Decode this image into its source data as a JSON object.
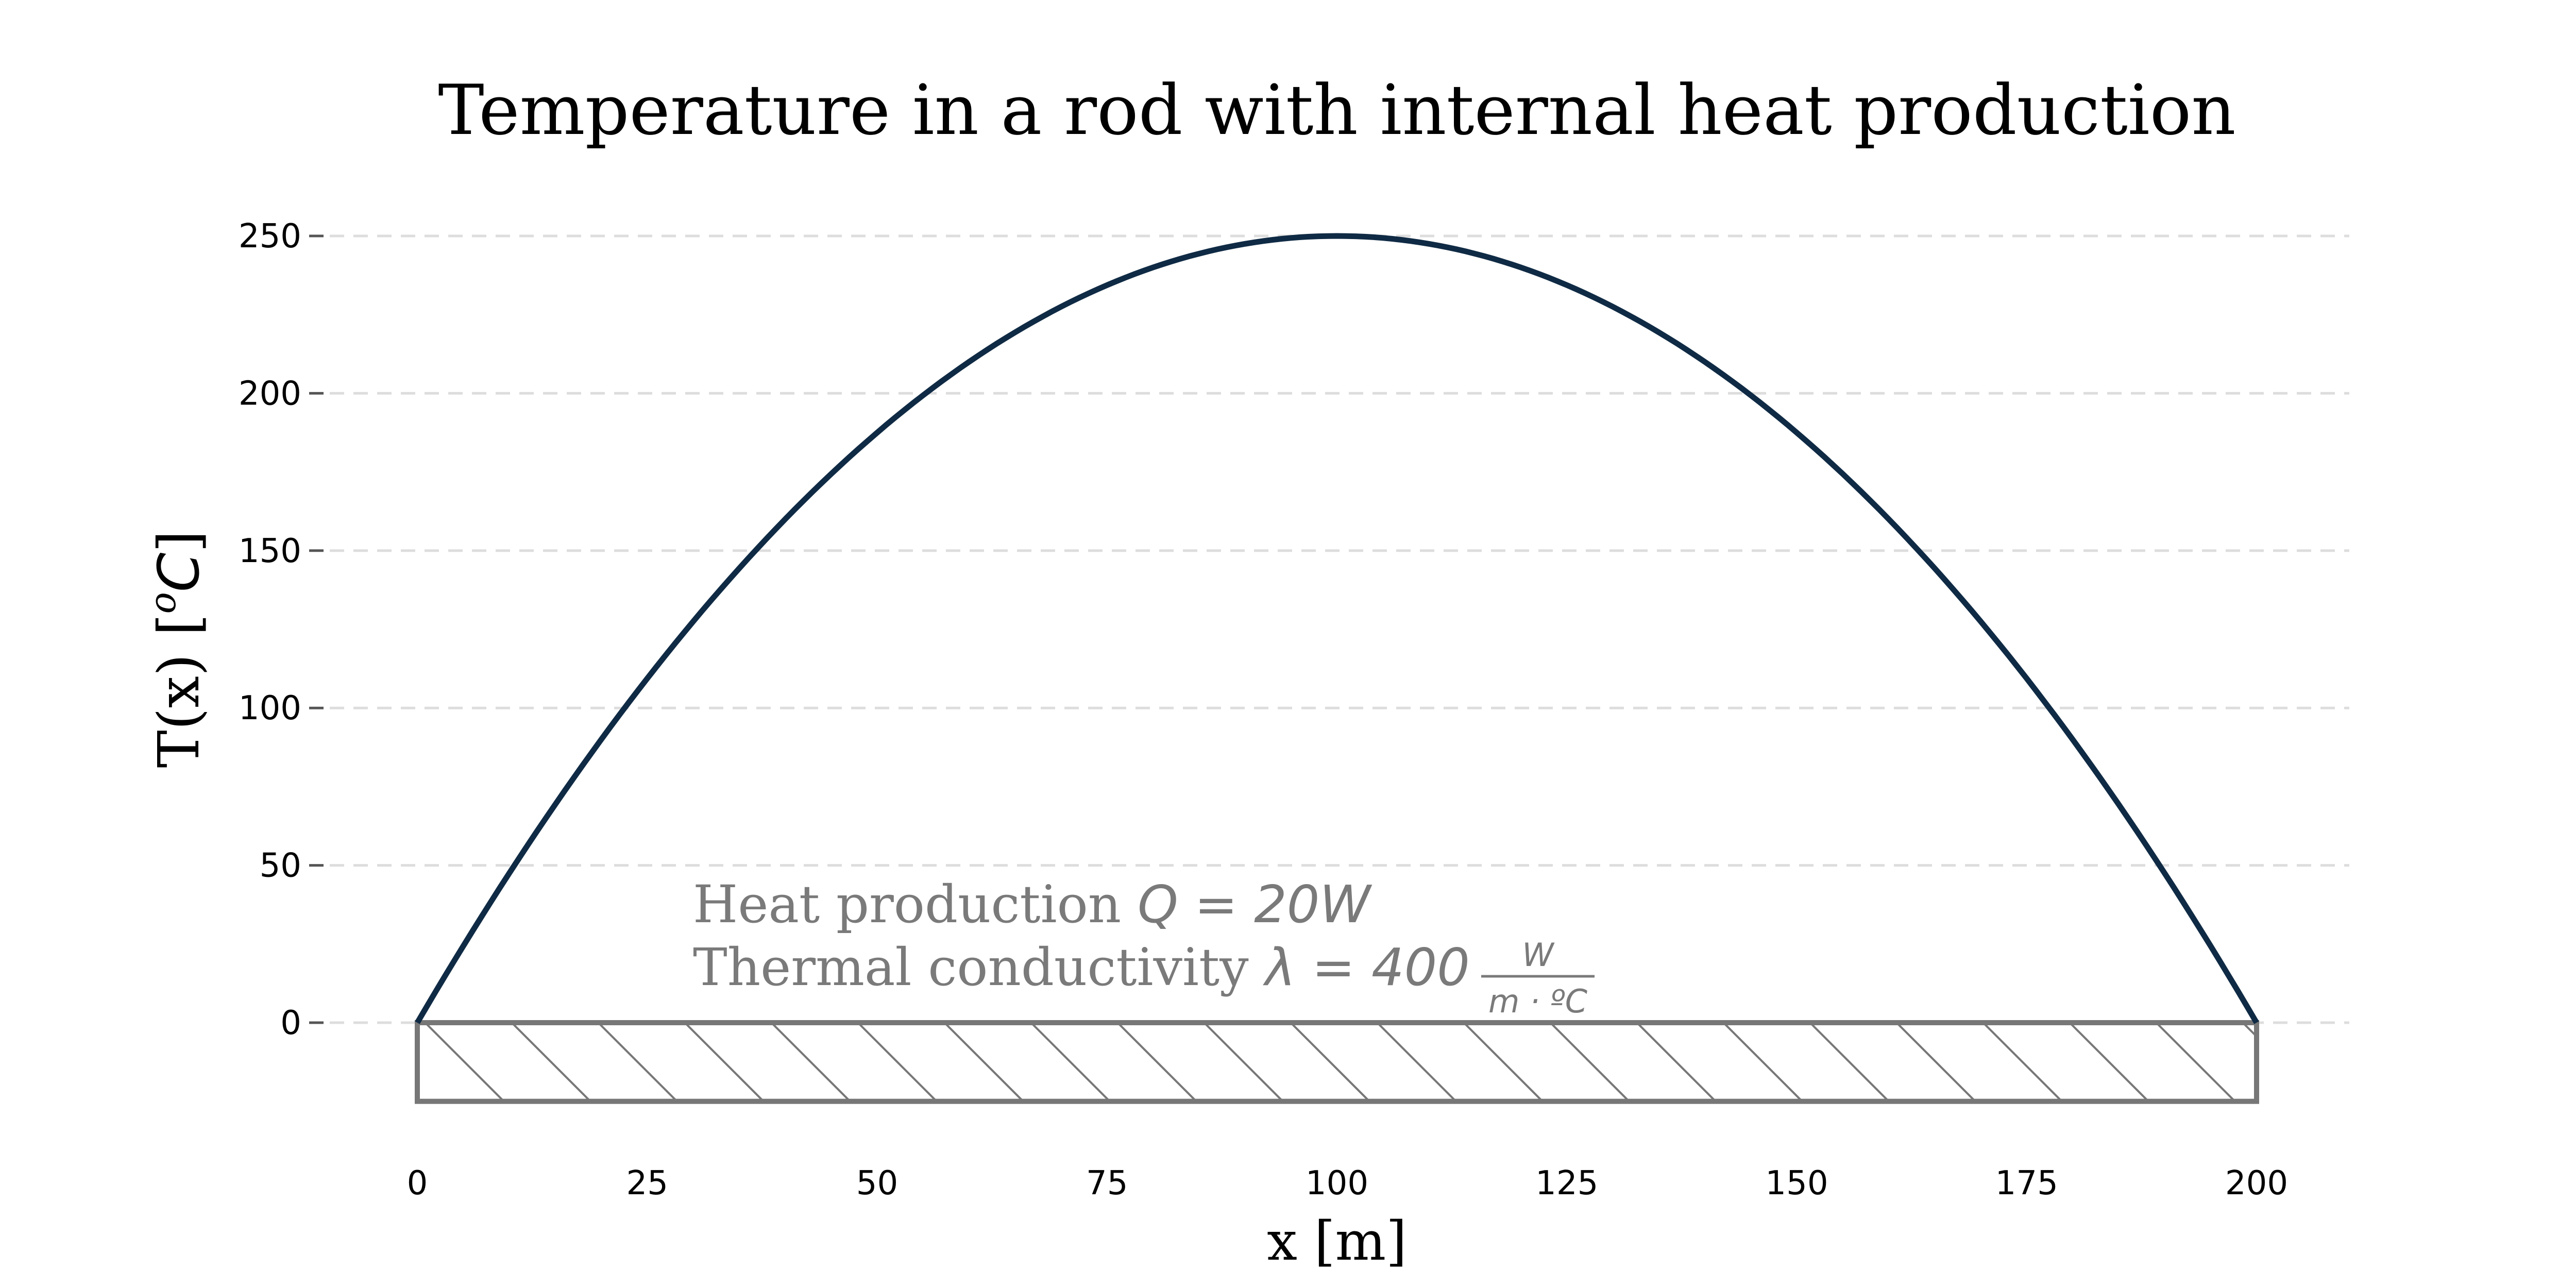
{
  "chart_data": {
    "type": "line",
    "title": "Temperature in a rod with internal heat production",
    "xlabel": "x [m]",
    "ylabel": "T(x) [ºC]",
    "ylabel_parts": {
      "text": "T(x) [",
      "sup": "o",
      "unit": "C",
      "close": "]"
    },
    "xlim": [
      0,
      200
    ],
    "ylim": [
      -25,
      250
    ],
    "x_ticks": [
      0,
      25,
      50,
      75,
      100,
      125,
      150,
      175,
      200
    ],
    "y_ticks": [
      0,
      50,
      100,
      150,
      200,
      250
    ],
    "grid": "horizontal-dashed",
    "series": [
      {
        "color": "#0f2a44",
        "x": [
          0,
          10,
          20,
          30,
          40,
          50,
          60,
          70,
          80,
          90,
          100,
          110,
          120,
          130,
          140,
          150,
          160,
          170,
          180,
          190,
          200
        ],
        "y": [
          0,
          47.5,
          90,
          127.5,
          160,
          187.5,
          210,
          227.5,
          240,
          247.5,
          250,
          247.5,
          240,
          227.5,
          210,
          187.5,
          160,
          127.5,
          90,
          47.5,
          0
        ]
      }
    ],
    "rod": {
      "x_start": 0,
      "x_end": 200,
      "y_top": 0,
      "y_bottom": -25,
      "color": "#777777"
    },
    "annotations": {
      "heat_label": "Heat production ",
      "heat_math": "Q = 20W",
      "cond_label": "Thermal conductivity ",
      "cond_math": "λ = 400",
      "frac_num": "W",
      "frac_den": "m · ºC",
      "color": "#7a7a7a"
    },
    "grid_color": "#dddddd",
    "axis_tick_color": "#555555"
  }
}
